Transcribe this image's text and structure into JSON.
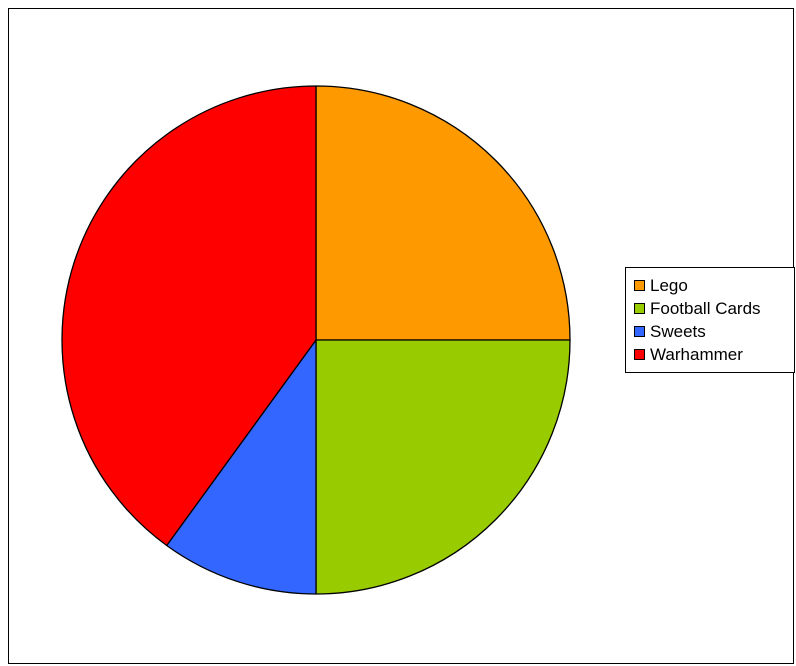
{
  "chart_data": {
    "type": "pie",
    "title": "",
    "slices": [
      {
        "label": "Lego",
        "value": 25,
        "color": "#ff9900"
      },
      {
        "label": "Football Cards",
        "value": 25,
        "color": "#99cc00"
      },
      {
        "label": "Sweets",
        "value": 10,
        "color": "#3366ff"
      },
      {
        "label": "Warhammer",
        "value": 40,
        "color": "#ff0000"
      }
    ],
    "start_angle": "12 o'clock",
    "direction": "clockwise",
    "legend": {
      "position": "right",
      "entries": [
        "Lego",
        "Football Cards",
        "Sweets",
        "Warhammer"
      ]
    }
  }
}
